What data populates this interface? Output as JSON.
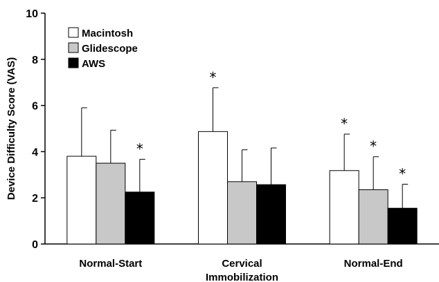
{
  "chart_data": {
    "type": "bar",
    "title": "",
    "xlabel": "",
    "ylabel": "Device Difficulty Score (VAS)",
    "ylim": [
      0,
      10
    ],
    "yticks": [
      "0",
      "2",
      "4",
      "6",
      "8",
      "10"
    ],
    "grid": false,
    "legend_position": "top-left",
    "categories": [
      {
        "lines": [
          "Normal-Start"
        ]
      },
      {
        "lines": [
          "Cervical",
          "Immobilization"
        ]
      },
      {
        "lines": [
          "Normal-End"
        ]
      }
    ],
    "series": [
      {
        "name": "Macintosh",
        "color": "#ffffff",
        "values": [
          3.8,
          4.87,
          3.18
        ],
        "errors": [
          2.1,
          1.9,
          1.58
        ],
        "significant": [
          false,
          true,
          true
        ]
      },
      {
        "name": "Glidescope",
        "color": "#c8c8c8",
        "values": [
          3.5,
          2.7,
          2.35
        ],
        "errors": [
          1.43,
          1.38,
          1.43
        ],
        "significant": [
          false,
          false,
          true
        ]
      },
      {
        "name": "AWS",
        "color": "#000000",
        "values": [
          2.25,
          2.57,
          1.55
        ],
        "errors": [
          1.42,
          1.59,
          1.04
        ],
        "significant": [
          true,
          false,
          true
        ]
      }
    ],
    "significance_marker": "*"
  }
}
